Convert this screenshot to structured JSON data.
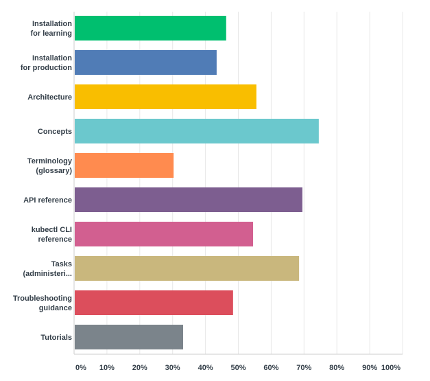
{
  "chart_data": {
    "type": "bar",
    "orientation": "horizontal",
    "categories": [
      [
        "Installation",
        "for learning"
      ],
      [
        "Installation",
        "for production"
      ],
      [
        "Architecture"
      ],
      [
        "Concepts"
      ],
      [
        "Terminology",
        "(glossary)"
      ],
      [
        "API reference"
      ],
      [
        "kubectl CLI",
        "reference"
      ],
      [
        "Tasks",
        "(administeri..."
      ],
      [
        "Troubleshooting",
        "guidance"
      ],
      [
        "Tutorials"
      ]
    ],
    "values": [
      46.3,
      43.4,
      55.5,
      74.5,
      30.3,
      69.5,
      54.5,
      68.5,
      48.4,
      33.2
    ],
    "colors": [
      "#00bf6f",
      "#507cb6",
      "#f9be00",
      "#6bc8cd",
      "#ff8b4f",
      "#7d5e90",
      "#d25f90",
      "#c9b77d",
      "#dc4e5c",
      "#7b848b"
    ],
    "xlim": [
      0,
      100
    ],
    "xticks": [
      "0%",
      "10%",
      "20%",
      "30%",
      "40%",
      "50%",
      "60%",
      "70%",
      "80%",
      "90%",
      "100%"
    ],
    "grid": true,
    "title": "",
    "xlabel": "",
    "ylabel": ""
  }
}
